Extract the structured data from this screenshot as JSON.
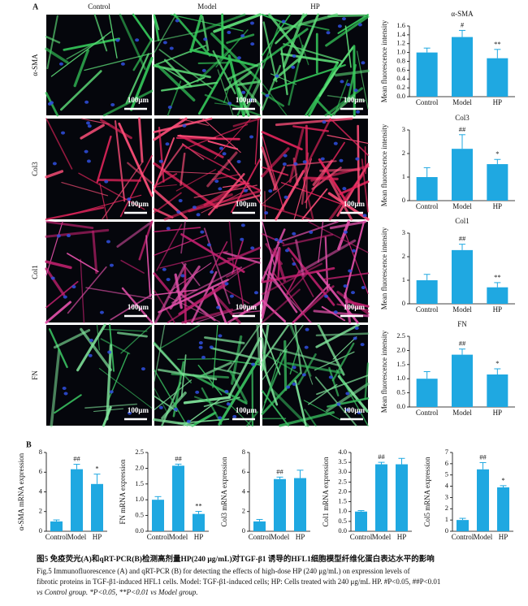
{
  "panel_a": {
    "label": "A",
    "columns": [
      "Control",
      "Model",
      "HP"
    ],
    "rows": [
      "α-SMA",
      "Col3",
      "Col1",
      "FN"
    ],
    "scale_bar": "100μm"
  },
  "panel_b": {
    "label": "B"
  },
  "chart_data": [
    {
      "type": "bar",
      "title": "α-SMA",
      "ylabel": "Mean fluorescence intensity",
      "categories": [
        "Control",
        "Model",
        "HP"
      ],
      "values": [
        1.0,
        1.35,
        0.87
      ],
      "errors": [
        0.1,
        0.15,
        0.2
      ],
      "annotations": [
        null,
        "#",
        "**"
      ],
      "color": "#1fa8e1",
      "ylim": [
        0,
        1.6
      ],
      "yticks": [
        {
          "value": 0,
          "label": "0.0"
        },
        0.2,
        0.4,
        0.6,
        0.8,
        {
          "value": 1,
          "label": "1.0"
        },
        1.2,
        1.4,
        1.6
      ]
    },
    {
      "type": "bar",
      "title": "Col3",
      "ylabel": "Mean fluorescence intensity",
      "categories": [
        "Control",
        "Model",
        "HP"
      ],
      "values": [
        1.0,
        2.2,
        1.55
      ],
      "errors": [
        0.4,
        0.6,
        0.2
      ],
      "annotations": [
        null,
        "##",
        "*"
      ],
      "color": "#1fa8e1",
      "ylim": [
        0,
        3
      ],
      "yticks": [
        0,
        1,
        2,
        3
      ]
    },
    {
      "type": "bar",
      "title": "Col1",
      "ylabel": "Mean fluorescence intensity",
      "categories": [
        "Control",
        "Model",
        "HP"
      ],
      "values": [
        1.0,
        2.28,
        0.7
      ],
      "errors": [
        0.25,
        0.25,
        0.2
      ],
      "annotations": [
        null,
        "##",
        "**"
      ],
      "color": "#1fa8e1",
      "ylim": [
        0,
        3
      ],
      "yticks": [
        0,
        1,
        2,
        3
      ]
    },
    {
      "type": "bar",
      "title": "FN",
      "ylabel": "Mean fluorescence intensity",
      "categories": [
        "Control",
        "Model",
        "HP"
      ],
      "values": [
        1.0,
        1.85,
        1.15
      ],
      "errors": [
        0.25,
        0.2,
        0.2
      ],
      "annotations": [
        null,
        "##",
        "*"
      ],
      "color": "#1fa8e1",
      "ylim": [
        0,
        2.5
      ],
      "yticks": [
        {
          "value": 0,
          "label": "0.0"
        },
        0.5,
        {
          "value": 1,
          "label": "1.0"
        },
        1.5,
        {
          "value": 2,
          "label": "2.0"
        },
        2.5
      ]
    },
    {
      "type": "bar",
      "ylabel": "α-SMA mRNA expression",
      "categories": [
        "Control",
        "Model",
        "HP"
      ],
      "values": [
        1.0,
        6.3,
        4.8
      ],
      "errors": [
        0.15,
        0.5,
        1.0
      ],
      "annotations": [
        null,
        "##",
        "*"
      ],
      "color": "#1fa8e1",
      "ylim": [
        0,
        8
      ],
      "yticks": [
        0,
        2,
        4,
        6,
        8
      ]
    },
    {
      "type": "bar",
      "ylabel": "FN mRNA expression",
      "categories": [
        "Control",
        "Model",
        "HP"
      ],
      "values": [
        1.0,
        2.08,
        0.55
      ],
      "errors": [
        0.1,
        0.05,
        0.08
      ],
      "annotations": [
        null,
        "##",
        "**"
      ],
      "color": "#1fa8e1",
      "ylim": [
        0,
        2.5
      ],
      "yticks": [
        {
          "value": 0,
          "label": "0.0"
        },
        0.5,
        {
          "value": 1,
          "label": "1.0"
        },
        1.5,
        {
          "value": 2,
          "label": "2.0"
        },
        2.5
      ]
    },
    {
      "type": "bar",
      "ylabel": "Col3 mRNA expression",
      "categories": [
        "Control",
        "Model",
        "HP"
      ],
      "values": [
        1.0,
        5.3,
        5.4
      ],
      "errors": [
        0.2,
        0.2,
        0.8
      ],
      "annotations": [
        null,
        "##",
        null
      ],
      "color": "#1fa8e1",
      "ylim": [
        0,
        8
      ],
      "yticks": [
        0,
        2,
        4,
        6,
        8
      ]
    },
    {
      "type": "bar",
      "ylabel": "Col1 mRNA expression",
      "categories": [
        "Control",
        "Model",
        "HP"
      ],
      "values": [
        1.0,
        3.4,
        3.4
      ],
      "errors": [
        0.05,
        0.1,
        0.3
      ],
      "annotations": [
        null,
        "##",
        null
      ],
      "color": "#1fa8e1",
      "ylim": [
        0,
        4
      ],
      "yticks": [
        {
          "value": 0,
          "label": "0.0"
        },
        0.5,
        {
          "value": 1,
          "label": "1.0"
        },
        1.5,
        {
          "value": 2,
          "label": "2.0"
        },
        2.5,
        {
          "value": 3,
          "label": "3.0"
        },
        3.5,
        {
          "value": 4,
          "label": "4.0"
        }
      ]
    },
    {
      "type": "bar",
      "ylabel": "Col5 mRNA expression",
      "categories": [
        "Control",
        "Model",
        "HP"
      ],
      "values": [
        1.0,
        5.5,
        3.9
      ],
      "errors": [
        0.15,
        0.6,
        0.15
      ],
      "annotations": [
        null,
        "##",
        "*"
      ],
      "color": "#1fa8e1",
      "ylim": [
        0,
        7
      ],
      "yticks": [
        0,
        1,
        2,
        3,
        4,
        5,
        6,
        7
      ]
    }
  ],
  "caption": [
    "图5 免疫荧光(A)和qRT-PCR(B)检测高剂量HP(240 μg/mL)对TGF-β1 诱导的HFL1细胞模型纤维化蛋白表达水平的影响",
    "Fig.5 Immunofluorescence (A) and qRT-PCR (B) for detecting the effects of high-dose HP (240 μg/mL) on expression levels of",
    "fibrotic proteins in TGF-β1-induced HFL1 cells. Model: TGF-β1-induced cells; HP: Cells treated with 240 μg/mL HP. #P<0.05, ##P<0.01",
    "vs Control group. *P<0.05, **P<0.01 vs Model group."
  ]
}
